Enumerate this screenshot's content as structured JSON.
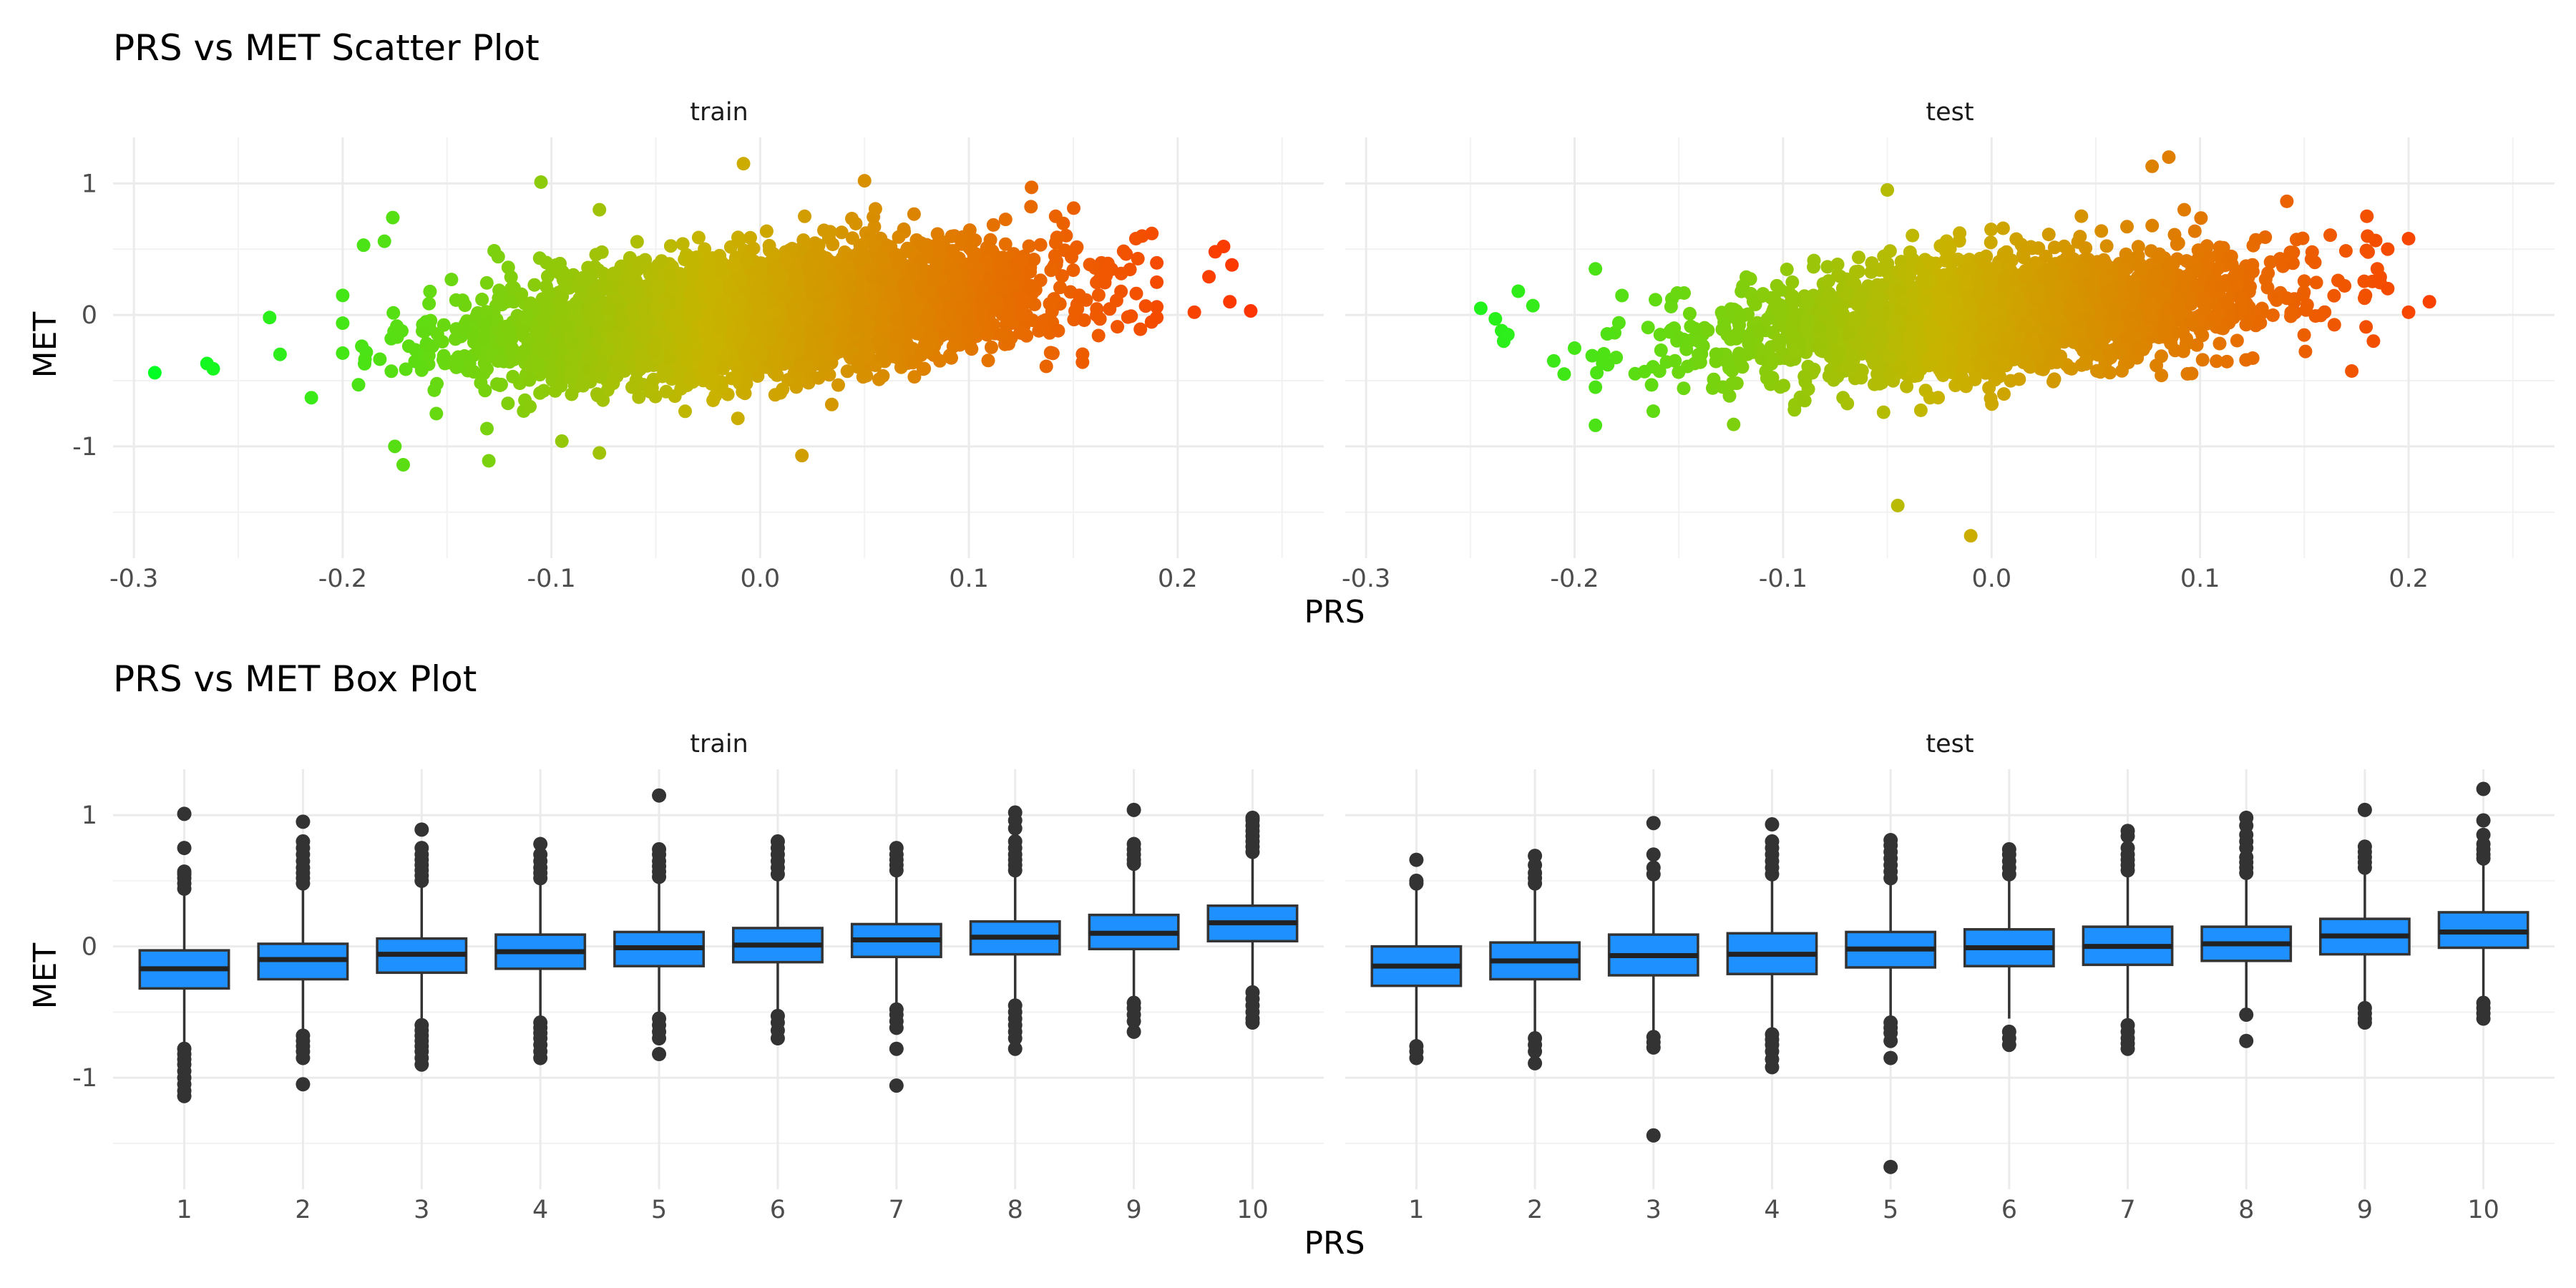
{
  "chart_data": [
    {
      "type": "scatter",
      "title": "PRS vs MET Scatter Plot",
      "xlabel": "PRS",
      "ylabel": "MET",
      "facets": [
        "train",
        "test"
      ],
      "xlim": [
        -0.31,
        0.27
      ],
      "ylim": [
        -1.85,
        1.35
      ],
      "xticks": [
        -0.3,
        -0.2,
        -0.1,
        0.0,
        0.1,
        0.2
      ],
      "xtick_labels": [
        "-0.3",
        "-0.2",
        "-0.1",
        "0.0",
        "0.1",
        "0.2"
      ],
      "yticks": [
        -1,
        0,
        1
      ],
      "ytick_labels": [
        "-1",
        "0",
        "1"
      ],
      "color_gradient": {
        "low": "#00ff22",
        "mid": "#c8b400",
        "high": "#ff3300",
        "domain": [
          -0.29,
          0.24
        ]
      },
      "grid": true,
      "panels": [
        {
          "facet": "train",
          "x_mean": 0.0,
          "x_sd": 0.065,
          "slope": 1.5,
          "noise_sd": 0.22,
          "outliers": [
            {
              "x": -0.29,
              "y": -0.44
            },
            {
              "x": -0.265,
              "y": -0.37
            },
            {
              "x": -0.262,
              "y": -0.41
            },
            {
              "x": -0.235,
              "y": -0.02
            },
            {
              "x": -0.23,
              "y": -0.3
            },
            {
              "x": -0.215,
              "y": -0.63
            },
            {
              "x": -0.19,
              "y": 0.53
            },
            {
              "x": -0.18,
              "y": 0.56
            },
            {
              "x": -0.176,
              "y": 0.74
            },
            {
              "x": -0.175,
              "y": -1.0
            },
            {
              "x": -0.171,
              "y": -1.14
            },
            {
              "x": -0.13,
              "y": -1.11
            },
            {
              "x": -0.105,
              "y": 1.01
            },
            {
              "x": -0.095,
              "y": -0.96
            },
            {
              "x": -0.077,
              "y": -1.05
            },
            {
              "x": -0.077,
              "y": 0.8
            },
            {
              "x": -0.008,
              "y": 1.15
            },
            {
              "x": 0.02,
              "y": -1.07
            },
            {
              "x": 0.05,
              "y": 1.02
            },
            {
              "x": 0.13,
              "y": 0.97
            },
            {
              "x": 0.18,
              "y": 0.58
            },
            {
              "x": 0.208,
              "y": 0.02
            },
            {
              "x": 0.215,
              "y": 0.29
            },
            {
              "x": 0.218,
              "y": 0.48
            },
            {
              "x": 0.222,
              "y": 0.52
            },
            {
              "x": 0.225,
              "y": 0.1
            },
            {
              "x": 0.226,
              "y": 0.38
            },
            {
              "x": 0.235,
              "y": 0.03
            }
          ]
        },
        {
          "facet": "test",
          "x_mean": 0.0,
          "x_sd": 0.065,
          "slope": 1.3,
          "noise_sd": 0.22,
          "outliers": [
            {
              "x": -0.245,
              "y": 0.05
            },
            {
              "x": -0.238,
              "y": -0.03
            },
            {
              "x": -0.235,
              "y": -0.12
            },
            {
              "x": -0.234,
              "y": -0.2
            },
            {
              "x": -0.232,
              "y": -0.15
            },
            {
              "x": -0.227,
              "y": 0.18
            },
            {
              "x": -0.22,
              "y": 0.07
            },
            {
              "x": -0.21,
              "y": -0.35
            },
            {
              "x": -0.205,
              "y": -0.45
            },
            {
              "x": -0.19,
              "y": -0.55
            },
            {
              "x": -0.19,
              "y": -0.84
            },
            {
              "x": -0.19,
              "y": 0.35
            },
            {
              "x": -0.045,
              "y": -1.45
            },
            {
              "x": -0.05,
              "y": 0.95
            },
            {
              "x": -0.01,
              "y": -1.68
            },
            {
              "x": 0.077,
              "y": 1.13
            },
            {
              "x": 0.085,
              "y": 1.2
            },
            {
              "x": 0.18,
              "y": 0.75
            },
            {
              "x": 0.185,
              "y": 0.35
            },
            {
              "x": 0.19,
              "y": 0.2
            },
            {
              "x": 0.2,
              "y": 0.58
            },
            {
              "x": 0.2,
              "y": 0.02
            },
            {
              "x": 0.21,
              "y": 0.1
            }
          ]
        }
      ]
    },
    {
      "type": "box",
      "title": "PRS vs MET Box Plot",
      "xlabel": "PRS",
      "ylabel": "MET",
      "facets": [
        "train",
        "test"
      ],
      "categories": [
        "1",
        "2",
        "3",
        "4",
        "5",
        "6",
        "7",
        "8",
        "9",
        "10"
      ],
      "ylim": [
        -1.85,
        1.35
      ],
      "yticks": [
        -1,
        0,
        1
      ],
      "ytick_labels": [
        "-1",
        "0",
        "1"
      ],
      "box_color": "#1e90ff",
      "grid": true,
      "panels": [
        {
          "facet": "train",
          "boxes": [
            {
              "q1": -0.32,
              "median": -0.17,
              "q3": -0.03,
              "whisker_low": -0.76,
              "whisker_high": 0.41,
              "outliers": [
                -0.78,
                -0.82,
                -0.86,
                -0.9,
                -0.95,
                -1.0,
                -1.05,
                -1.1,
                -1.14,
                0.44,
                0.48,
                0.52,
                0.55,
                0.57,
                0.75,
                1.01
              ]
            },
            {
              "q1": -0.25,
              "median": -0.1,
              "q3": 0.02,
              "whisker_low": -0.65,
              "whisker_high": 0.44,
              "outliers": [
                -0.68,
                -0.72,
                -0.76,
                -0.8,
                -0.85,
                -1.05,
                0.48,
                0.52,
                0.56,
                0.6,
                0.65,
                0.7,
                0.75,
                0.8,
                0.95
              ]
            },
            {
              "q1": -0.2,
              "median": -0.06,
              "q3": 0.06,
              "whisker_low": -0.58,
              "whisker_high": 0.46,
              "outliers": [
                -0.6,
                -0.64,
                -0.68,
                -0.72,
                -0.76,
                -0.8,
                -0.85,
                -0.9,
                0.5,
                0.54,
                0.58,
                0.62,
                0.66,
                0.7,
                0.75,
                0.89
              ]
            },
            {
              "q1": -0.17,
              "median": -0.04,
              "q3": 0.09,
              "whisker_low": -0.56,
              "whisker_high": 0.49,
              "outliers": [
                -0.58,
                -0.62,
                -0.66,
                -0.7,
                -0.75,
                -0.8,
                -0.85,
                0.52,
                0.56,
                0.6,
                0.65,
                0.7,
                0.78
              ]
            },
            {
              "q1": -0.15,
              "median": -0.01,
              "q3": 0.11,
              "whisker_low": -0.52,
              "whisker_high": 0.5,
              "outliers": [
                -0.55,
                -0.6,
                -0.65,
                -0.7,
                -0.82,
                0.53,
                0.57,
                0.61,
                0.65,
                0.7,
                0.74,
                1.15
              ]
            },
            {
              "q1": -0.12,
              "median": 0.01,
              "q3": 0.14,
              "whisker_low": -0.5,
              "whisker_high": 0.52,
              "outliers": [
                -0.53,
                -0.58,
                -0.64,
                -0.7,
                0.55,
                0.6,
                0.65,
                0.7,
                0.75,
                0.8
              ]
            },
            {
              "q1": -0.08,
              "median": 0.05,
              "q3": 0.17,
              "whisker_low": -0.45,
              "whisker_high": 0.55,
              "outliers": [
                -0.48,
                -0.52,
                -0.57,
                -0.62,
                -0.78,
                -1.06,
                0.58,
                0.62,
                0.66,
                0.7,
                0.75
              ]
            },
            {
              "q1": -0.06,
              "median": 0.07,
              "q3": 0.19,
              "whisker_low": -0.42,
              "whisker_high": 0.55,
              "outliers": [
                -0.45,
                -0.5,
                -0.55,
                -0.6,
                -0.65,
                -0.7,
                -0.78,
                0.58,
                0.62,
                0.66,
                0.7,
                0.75,
                0.8,
                0.9,
                0.96,
                1.02
              ]
            },
            {
              "q1": -0.02,
              "median": 0.1,
              "q3": 0.24,
              "whisker_low": -0.4,
              "whisker_high": 0.6,
              "outliers": [
                -0.43,
                -0.47,
                -0.52,
                -0.57,
                -0.65,
                0.63,
                0.66,
                0.7,
                0.74,
                0.78,
                1.04
              ]
            },
            {
              "q1": 0.04,
              "median": 0.18,
              "q3": 0.31,
              "whisker_low": -0.32,
              "whisker_high": 0.69,
              "outliers": [
                -0.35,
                -0.4,
                -0.45,
                -0.5,
                -0.55,
                -0.58,
                0.72,
                0.76,
                0.8,
                0.84,
                0.88,
                0.92,
                0.96,
                0.98
              ]
            }
          ]
        },
        {
          "facet": "test",
          "boxes": [
            {
              "q1": -0.3,
              "median": -0.15,
              "q3": 0.0,
              "whisker_low": -0.73,
              "whisker_high": 0.44,
              "outliers": [
                -0.76,
                -0.8,
                -0.85,
                0.48,
                0.5,
                0.66
              ]
            },
            {
              "q1": -0.25,
              "median": -0.11,
              "q3": 0.03,
              "whisker_low": -0.66,
              "whisker_high": 0.45,
              "outliers": [
                -0.7,
                -0.75,
                -0.8,
                -0.89,
                0.48,
                0.52,
                0.56,
                0.62,
                0.69
              ]
            },
            {
              "q1": -0.22,
              "median": -0.07,
              "q3": 0.09,
              "whisker_low": -0.66,
              "whisker_high": 0.5,
              "outliers": [
                -0.69,
                -0.73,
                -0.77,
                -1.44,
                0.55,
                0.6,
                0.7,
                0.94
              ]
            },
            {
              "q1": -0.21,
              "median": -0.06,
              "q3": 0.1,
              "whisker_low": -0.64,
              "whisker_high": 0.52,
              "outliers": [
                -0.67,
                -0.71,
                -0.75,
                -0.8,
                -0.86,
                -0.92,
                0.55,
                0.6,
                0.65,
                0.7,
                0.75,
                0.8,
                0.93
              ]
            },
            {
              "q1": -0.16,
              "median": -0.02,
              "q3": 0.11,
              "whisker_low": -0.55,
              "whisker_high": 0.49,
              "outliers": [
                -0.58,
                -0.62,
                -0.66,
                -0.72,
                -0.85,
                -1.68,
                0.52,
                0.57,
                0.62,
                0.67,
                0.72,
                0.77,
                0.81
              ]
            },
            {
              "q1": -0.15,
              "median": -0.01,
              "q3": 0.13,
              "whisker_low": -0.55,
              "whisker_high": 0.5,
              "outliers": [
                -0.65,
                -0.7,
                -0.75,
                0.55,
                0.6,
                0.65,
                0.7,
                0.74
              ]
            },
            {
              "q1": -0.14,
              "median": 0.0,
              "q3": 0.15,
              "whisker_low": -0.56,
              "whisker_high": 0.53,
              "outliers": [
                -0.6,
                -0.65,
                -0.7,
                -0.74,
                -0.78,
                0.58,
                0.62,
                0.66,
                0.7,
                0.75,
                0.84,
                0.88
              ]
            },
            {
              "q1": -0.11,
              "median": 0.02,
              "q3": 0.15,
              "whisker_low": -0.48,
              "whisker_high": 0.52,
              "outliers": [
                -0.52,
                -0.72,
                0.56,
                0.6,
                0.64,
                0.68,
                0.75,
                0.8,
                0.85,
                0.92,
                0.98
              ]
            },
            {
              "q1": -0.06,
              "median": 0.08,
              "q3": 0.21,
              "whisker_low": -0.44,
              "whisker_high": 0.56,
              "outliers": [
                -0.47,
                -0.51,
                -0.55,
                -0.58,
                0.6,
                0.64,
                0.68,
                0.72,
                0.76,
                1.04
              ]
            },
            {
              "q1": -0.01,
              "median": 0.11,
              "q3": 0.26,
              "whisker_low": -0.4,
              "whisker_high": 0.64,
              "outliers": [
                -0.43,
                -0.47,
                -0.51,
                -0.55,
                0.67,
                0.7,
                0.74,
                0.78,
                0.85,
                0.96,
                1.2
              ]
            }
          ]
        }
      ]
    }
  ]
}
